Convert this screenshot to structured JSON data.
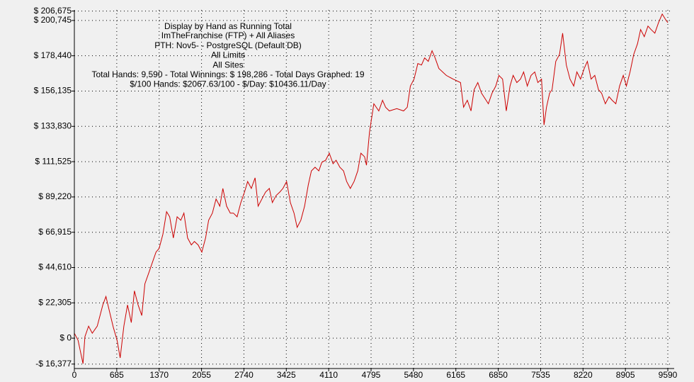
{
  "chart_data": {
    "type": "line",
    "title": "Display by Hand as Running Total",
    "subtitle": [
      "ImTheFranchise (FTP) + All Aliases",
      "PTH: Nov5- - PostgreSQL (Default DB)",
      "All Limits",
      "All Sites",
      "Total Hands: 9,590 - Total Winnings: $ 198,286 - Total Days Graphed: 19",
      "$/100 Hands: $2067.63/100 - $/Day: $10436.11/Day"
    ],
    "x": [
      0,
      60,
      140,
      170,
      230,
      290,
      370,
      460,
      510,
      570,
      630,
      690,
      740,
      800,
      860,
      920,
      970,
      1030,
      1090,
      1140,
      1200,
      1260,
      1320,
      1370,
      1430,
      1490,
      1540,
      1600,
      1660,
      1720,
      1770,
      1830,
      1890,
      1940,
      2000,
      2060,
      2120,
      2170,
      2230,
      2290,
      2350,
      2400,
      2460,
      2520,
      2570,
      2630,
      2690,
      2750,
      2800,
      2860,
      2920,
      2970,
      3030,
      3090,
      3150,
      3200,
      3260,
      3320,
      3370,
      3430,
      3490,
      3550,
      3600,
      3660,
      3720,
      3780,
      3830,
      3890,
      3950,
      4000,
      4060,
      4120,
      4180,
      4230,
      4290,
      4350,
      4400,
      4460,
      4520,
      4580,
      4630,
      4690,
      4720,
      4770,
      4840,
      4920,
      4980,
      5030,
      5090,
      5210,
      5320,
      5380,
      5430,
      5490,
      5550,
      5610,
      5660,
      5720,
      5780,
      5830,
      5890,
      6010,
      6120,
      6240,
      6290,
      6350,
      6410,
      6460,
      6520,
      6580,
      6690,
      6750,
      6810,
      6860,
      6920,
      6980,
      7040,
      7090,
      7150,
      7210,
      7260,
      7320,
      7380,
      7440,
      7490,
      7550,
      7590,
      7630,
      7680,
      7720,
      7780,
      7840,
      7890,
      7950,
      8010,
      8070,
      8120,
      8180,
      8240,
      8290,
      8350,
      8410,
      8470,
      8520,
      8580,
      8640,
      8690,
      8750,
      8810,
      8870,
      8920,
      8980,
      9040,
      9100,
      9150,
      9210,
      9270,
      9320,
      9380,
      9440,
      9500,
      9550,
      9590
    ],
    "series": [
      {
        "color": "#cc0000",
        "values": [
          3100,
          -1300,
          -16100,
          900,
          7600,
          3100,
          7600,
          21000,
          26300,
          16500,
          6700,
          -1300,
          -12500,
          7600,
          21000,
          9800,
          29900,
          21000,
          14300,
          34300,
          41000,
          47700,
          54400,
          56700,
          65600,
          79900,
          76700,
          63300,
          76700,
          74500,
          79000,
          63300,
          58900,
          61100,
          58900,
          54400,
          63300,
          74500,
          79000,
          87900,
          83400,
          94600,
          83400,
          79000,
          79000,
          76700,
          85700,
          92300,
          99000,
          94600,
          101300,
          83400,
          87900,
          92300,
          94600,
          85700,
          90100,
          92300,
          94600,
          99000,
          85700,
          79000,
          70000,
          74500,
          83400,
          96800,
          105700,
          108000,
          105700,
          111100,
          112400,
          116900,
          110200,
          112400,
          108000,
          105700,
          99000,
          94600,
          99000,
          105700,
          116900,
          114600,
          109300,
          130300,
          148100,
          143600,
          150300,
          145900,
          143600,
          145000,
          143600,
          145900,
          159300,
          163700,
          173500,
          172600,
          177100,
          174900,
          181600,
          177100,
          170400,
          166000,
          163700,
          161500,
          145900,
          150300,
          143600,
          157000,
          161500,
          154800,
          148100,
          154800,
          159300,
          166000,
          163700,
          143600,
          159300,
          166000,
          161500,
          163700,
          168200,
          159300,
          166000,
          168200,
          161500,
          163700,
          134700,
          145900,
          154800,
          157000,
          174900,
          179300,
          192700,
          172600,
          163700,
          159300,
          168200,
          163700,
          170400,
          174900,
          163700,
          166000,
          157000,
          154800,
          148100,
          152600,
          150300,
          148100,
          159300,
          166000,
          159300,
          168200,
          179300,
          186000,
          195000,
          190500,
          197200,
          195000,
          192700,
          199400,
          204800,
          201600,
          199400
        ]
      }
    ],
    "xlim": [
      0,
      9670
    ],
    "xticks": [
      0,
      685,
      1370,
      2055,
      2740,
      3425,
      4110,
      4795,
      5480,
      6165,
      6850,
      7535,
      8220,
      8905,
      9590
    ],
    "ylim": [
      -19200,
      207400
    ],
    "yticks": [
      {
        "value": -16377,
        "label": "-$ 16,377"
      },
      {
        "value": 0,
        "label": "$ 0"
      },
      {
        "value": 22305,
        "label": "$ 22,305"
      },
      {
        "value": 44610,
        "label": "$ 44,610"
      },
      {
        "value": 66915,
        "label": "$ 66,915"
      },
      {
        "value": 89220,
        "label": "$ 89,220"
      },
      {
        "value": 111525,
        "label": "$ 111,525"
      },
      {
        "value": 133830,
        "label": "$ 133,830"
      },
      {
        "value": 156135,
        "label": "$ 156,135"
      },
      {
        "value": 178440,
        "label": "$ 178,440"
      },
      {
        "value": 200745,
        "label": "$ 200,745"
      },
      {
        "value": 206675,
        "label": "$ 206,675"
      }
    ],
    "grid": true
  }
}
